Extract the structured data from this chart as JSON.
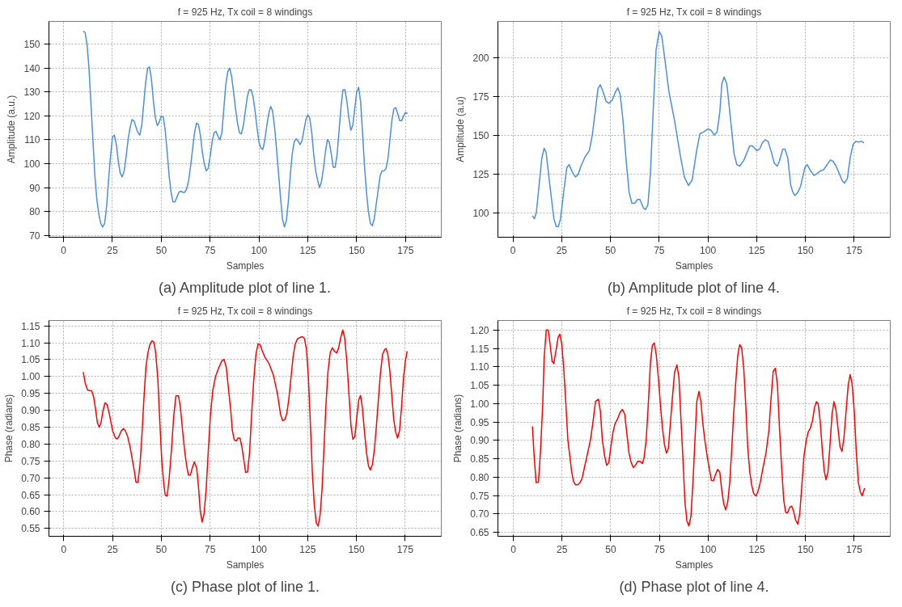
{
  "chart_data": [
    {
      "type": "line",
      "title": "f = 925 Hz, Tx coil = 8 windings",
      "xlabel": "Samples",
      "ylabel": "Amplitude (a.u.)",
      "annotations": [
        "(a) Amplitude plot of line 1."
      ],
      "xlim": [
        -7.5,
        193.3
      ],
      "ylim": [
        69.2,
        159.6
      ],
      "xticks": [
        0,
        25,
        50,
        75,
        100,
        125,
        150,
        175
      ],
      "yticks": [
        70,
        80,
        90,
        100,
        110,
        120,
        130,
        140,
        150
      ],
      "grid": true,
      "x": [
        10,
        11,
        12,
        13,
        14,
        16,
        17,
        18,
        19,
        20,
        21,
        22,
        23,
        24,
        25,
        26,
        27,
        28,
        29,
        30,
        31,
        32,
        33,
        34,
        35,
        36,
        37,
        38,
        39,
        40,
        41,
        42,
        43,
        44,
        45,
        46,
        47,
        48,
        49,
        50,
        51,
        52,
        53,
        54,
        55,
        56,
        57,
        58,
        59,
        60,
        61,
        62,
        63,
        64,
        65,
        66,
        67,
        68,
        69,
        70,
        71,
        72,
        73,
        74,
        75,
        76,
        77,
        78,
        79,
        80,
        81,
        82,
        83,
        84,
        85,
        86,
        87,
        88,
        89,
        90,
        91,
        92,
        93,
        94,
        95,
        96,
        97,
        98,
        99,
        100,
        101,
        102,
        103,
        104,
        105,
        106,
        107,
        108,
        109,
        110,
        111,
        112,
        113,
        114,
        115,
        116,
        117,
        118,
        119,
        120,
        121,
        122,
        123,
        124,
        125,
        126,
        127,
        128,
        129,
        130,
        131,
        132,
        133,
        134,
        135,
        136,
        137,
        138,
        139,
        140,
        141,
        142,
        143,
        144,
        145,
        146,
        147,
        148,
        149,
        150,
        151,
        152,
        153,
        154,
        155,
        156,
        157,
        158,
        159,
        160,
        161,
        162,
        163,
        164,
        165,
        166,
        167,
        168,
        169,
        170,
        171,
        172,
        173,
        174,
        175,
        176
      ],
      "series": [
        {
          "color": "#4a8fe0",
          "values": [
            155.5,
            155,
            150,
            140,
            125,
            95,
            85,
            79,
            75,
            73.5,
            75,
            82,
            93,
            103,
            111,
            112,
            108,
            101,
            96,
            94.5,
            97,
            103,
            110,
            115,
            118.5,
            118,
            115.5,
            113,
            112,
            116,
            125,
            134,
            140,
            140.5,
            135,
            126,
            119,
            116,
            117.5,
            120,
            119.5,
            114,
            105,
            95,
            88,
            84,
            84,
            86,
            88,
            88.5,
            88,
            88,
            89.5,
            93,
            99,
            106,
            113,
            117,
            116.5,
            112,
            105,
            100,
            97,
            98,
            103,
            109,
            113,
            113.5,
            111.5,
            110,
            113,
            123,
            133,
            138.5,
            140,
            136.5,
            130,
            123,
            117,
            113,
            112.5,
            116,
            122,
            128,
            131,
            131,
            128,
            122,
            115,
            109,
            106.5,
            106,
            110,
            116,
            121,
            124,
            122,
            115,
            106,
            96,
            86,
            77,
            73.5,
            76,
            84,
            95,
            104,
            109,
            110.5,
            109.5,
            108,
            109.5,
            114,
            118.5,
            120.5,
            119,
            113,
            104,
            97,
            93,
            90,
            92.5,
            98,
            105,
            110,
            109,
            104,
            98.5,
            98.5,
            104,
            114,
            124,
            131,
            131,
            126,
            119,
            114,
            116,
            123,
            130,
            132,
            126,
            113,
            99,
            88,
            80,
            75,
            74,
            77,
            83,
            89,
            95,
            97,
            97,
            98,
            102,
            110,
            118,
            123,
            123.5,
            121,
            118,
            118,
            120,
            121.5,
            121
          ]
        }
      ]
    },
    {
      "type": "line",
      "title": "f = 925 Hz, Tx coil = 8 windings",
      "xlabel": "Samples",
      "ylabel": "Amplitude (a.u)",
      "annotations": [
        "(b) Amplitude plot of line 4."
      ],
      "xlim": [
        -7.7,
        193.5
      ],
      "ylim": [
        84.1,
        223.4
      ],
      "xticks": [
        0,
        25,
        50,
        75,
        100,
        125,
        150,
        175
      ],
      "yticks": [
        100,
        125,
        150,
        175,
        200
      ],
      "grid": true,
      "x": [
        10,
        11,
        12,
        14.8,
        16,
        17,
        18.9,
        21,
        22.2,
        23.3,
        24.4,
        26.2,
        27.6,
        28.8,
        30.5,
        32,
        33.4,
        34.9,
        37,
        39.2,
        40.7,
        42.2,
        43.6,
        44.8,
        46.2,
        47.7,
        49.1,
        50.9,
        52.6,
        53.8,
        55,
        56.4,
        58.1,
        59.6,
        61,
        62.5,
        63.9,
        65.1,
        66.9,
        68,
        69.2,
        70.5,
        71.9,
        73.4,
        75,
        76.3,
        77.8,
        80,
        82.8,
        85.8,
        87.9,
        90,
        91.9,
        94.2,
        95.9,
        97.7,
        100,
        101.7,
        103.2,
        104.7,
        106.1,
        107.1,
        108.3,
        109.7,
        111.2,
        113.4,
        114.8,
        116.3,
        118.5,
        121.4,
        122.8,
        125,
        126.5,
        127.9,
        129.4,
        130.8,
        132.3,
        134,
        135.5,
        136.6,
        138.4,
        139.5,
        141,
        142.4,
        143.6,
        144.6,
        146.1,
        147.5,
        149.7,
        150.9,
        152.6,
        154.4,
        155.8,
        157.7,
        159.2,
        160.6,
        162.8,
        164.2,
        165.7,
        167.4,
        168.9,
        170,
        171.5,
        172.9,
        174.4,
        175.9,
        177.3,
        178.8,
        180
      ],
      "series": [
        {
          "color": "#4a8fe0",
          "values": [
            98,
            96,
            100,
            135,
            141.5,
            139,
            118,
            96,
            91,
            91,
            96,
            115,
            129,
            131,
            126,
            123,
            124.5,
            130,
            136,
            140,
            150,
            165,
            180,
            182.5,
            178,
            172,
            170.5,
            172.5,
            178,
            180.5,
            176,
            160,
            133,
            113,
            106,
            106,
            108.5,
            108.5,
            103,
            102,
            105,
            125,
            165,
            205,
            217,
            214,
            200,
            178,
            160,
            137,
            123,
            117.5,
            121,
            140,
            151,
            152,
            154,
            153,
            150,
            152,
            165,
            183,
            187.5,
            183,
            165,
            138,
            131,
            130,
            134,
            143,
            143,
            140,
            141,
            145,
            147,
            146,
            140,
            132,
            130,
            133,
            141,
            141,
            135,
            118,
            113,
            111,
            113,
            117,
            129,
            131,
            127,
            124,
            125,
            127,
            127.5,
            130,
            134,
            133,
            130,
            125,
            120.5,
            119,
            122,
            135,
            144,
            146,
            145.5,
            146,
            145
          ]
        }
      ]
    },
    {
      "type": "line",
      "title": "f = 925 Hz, Tx coil = 8 windings",
      "xlabel": "Samples",
      "ylabel": "Phase (radians)",
      "annotations": [
        "(c) Phase plot of line 1."
      ],
      "xlim": [
        -7.6,
        193.5
      ],
      "ylim": [
        0.527,
        1.166
      ],
      "xticks": [
        0,
        25,
        50,
        75,
        100,
        125,
        150,
        175
      ],
      "yticks": [
        0.55,
        {
          "value": 0.6,
          "label": "0.60"
        },
        0.65,
        {
          "value": 0.7,
          "label": "0.70"
        },
        0.75,
        {
          "value": 0.8,
          "label": "0.80"
        },
        0.85,
        {
          "value": 0.9,
          "label": "0.90"
        },
        0.95,
        {
          "value": 1.0,
          "label": "1.00"
        },
        1.05,
        {
          "value": 1.1,
          "label": "1.10"
        },
        1.15
      ],
      "grid": true,
      "x": [
        10,
        11,
        12.2,
        13.6,
        14.3,
        15.3,
        16.2,
        17.2,
        18.2,
        19.1,
        20.1,
        21.1,
        22.2,
        23.4,
        25.1,
        26.5,
        27.4,
        28.2,
        29.4,
        30.5,
        31.5,
        32.7,
        33.9,
        35,
        36.3,
        37,
        38,
        39.1,
        40.1,
        41.1,
        42.1,
        43.1,
        44.1,
        45.2,
        46.2,
        47.1,
        48.2,
        49.2,
        50.3,
        51.3,
        52,
        53,
        54,
        55.2,
        56.3,
        57.5,
        58.8,
        59.8,
        60.9,
        62.1,
        63,
        63.9,
        64.9,
        65.9,
        66.9,
        68.1,
        69,
        70,
        70.9,
        71.9,
        73,
        74.1,
        75.2,
        76.4,
        77.8,
        79.5,
        81,
        82.1,
        83.3,
        84.4,
        85.6,
        86.4,
        87.4,
        88.4,
        89.3,
        90.3,
        91.3,
        92.4,
        93.2,
        94.2,
        95.2,
        96.2,
        97.3,
        98.5,
        99.6,
        100.6,
        101.8,
        103.2,
        105.3,
        107.5,
        109.6,
        111.1,
        112.2,
        113.4,
        114.4,
        115.4,
        116.5,
        117.5,
        118.5,
        119.7,
        121.1,
        122.3,
        123.4,
        124.4,
        125.4,
        126.4,
        127.4,
        128.4,
        129.4,
        130.4,
        131.4,
        132.4,
        133.4,
        134.4,
        135.4,
        136.6,
        137.7,
        138.7,
        139.9,
        140.9,
        141.9,
        143,
        144,
        145,
        146.2,
        147.2,
        148.2,
        149.2,
        150.2,
        151.2,
        152.1,
        153,
        154,
        155.2,
        156.2,
        157.2,
        158.2,
        159.2,
        160.2,
        161.2,
        162.2,
        163.4,
        164.5,
        165.2,
        166.1,
        167.1,
        168.1,
        169.1,
        170.1,
        171.1,
        172.1,
        173.1,
        174.1,
        175,
        176
      ],
      "series": [
        {
          "color": "#ff0000",
          "values": [
            1.013,
            0.98,
            0.96,
            0.958,
            0.958,
            0.94,
            0.907,
            0.864,
            0.85,
            0.864,
            0.898,
            0.922,
            0.917,
            0.888,
            0.838,
            0.818,
            0.815,
            0.822,
            0.838,
            0.846,
            0.84,
            0.823,
            0.794,
            0.759,
            0.716,
            0.687,
            0.687,
            0.74,
            0.83,
            0.936,
            1.027,
            1.07,
            1.094,
            1.106,
            1.102,
            1.07,
            0.994,
            0.869,
            0.745,
            0.68,
            0.649,
            0.646,
            0.697,
            0.783,
            0.879,
            0.943,
            0.943,
            0.907,
            0.84,
            0.773,
            0.735,
            0.708,
            0.708,
            0.73,
            0.747,
            0.73,
            0.677,
            0.6,
            0.569,
            0.593,
            0.668,
            0.783,
            0.888,
            0.96,
            1.0,
            1.027,
            1.046,
            1.051,
            1.027,
            0.965,
            0.898,
            0.84,
            0.812,
            0.809,
            0.818,
            0.818,
            0.792,
            0.749,
            0.716,
            0.718,
            0.773,
            0.879,
            0.984,
            1.066,
            1.097,
            1.094,
            1.075,
            1.056,
            1.037,
            1.003,
            0.946,
            0.888,
            0.869,
            0.873,
            0.893,
            0.936,
            0.999,
            1.056,
            1.094,
            1.111,
            1.116,
            1.118,
            1.112,
            1.08,
            0.994,
            0.86,
            0.716,
            0.62,
            0.567,
            0.557,
            0.591,
            0.668,
            0.792,
            0.917,
            1.013,
            1.072,
            1.085,
            1.075,
            1.07,
            1.085,
            1.114,
            1.138,
            1.114,
            1.051,
            0.946,
            0.855,
            0.814,
            0.823,
            0.879,
            0.931,
            0.944,
            0.911,
            0.845,
            0.773,
            0.735,
            0.723,
            0.74,
            0.783,
            0.85,
            0.927,
            1.003,
            1.066,
            1.08,
            1.083,
            1.066,
            1.018,
            0.946,
            0.874,
            0.836,
            0.818,
            0.84,
            0.907,
            0.994,
            1.042,
            1.075
          ]
        }
      ]
    },
    {
      "type": "line",
      "title": "f = 925 Hz, Tx coil = 8 windings",
      "xlabel": "Samples",
      "ylabel": "Phase (radians)",
      "annotations": [
        "(d) Phase plot of line 4."
      ],
      "xlim": [
        -7.9,
        193.5
      ],
      "ylim": [
        0.639,
        1.226
      ],
      "xticks": [
        0,
        25,
        50,
        75,
        100,
        125,
        150,
        175
      ],
      "yticks": [
        0.65,
        {
          "value": 0.7,
          "label": "0.70"
        },
        0.75,
        {
          "value": 0.8,
          "label": "0.80"
        },
        0.85,
        {
          "value": 0.9,
          "label": "0.90"
        },
        0.95,
        {
          "value": 1.0,
          "label": "1.00"
        },
        1.05,
        {
          "value": 1.1,
          "label": "1.10"
        },
        1.15,
        {
          "value": 1.2,
          "label": "1.20"
        }
      ],
      "grid": true,
      "x": [
        9.8,
        10.7,
        11.7,
        12.9,
        13.9,
        15.1,
        15.8,
        16.9,
        17.9,
        18.8,
        19.9,
        20.8,
        22,
        23,
        23.9,
        24.9,
        25.9,
        26.9,
        28,
        29,
        30,
        30.9,
        31.9,
        33.1,
        34.1,
        35.2,
        36.3,
        37.8,
        39.6,
        41,
        42.2,
        43.7,
        44.7,
        45.7,
        46.9,
        47.9,
        49,
        50.1,
        51.2,
        52.2,
        53.5,
        54.8,
        56,
        57.2,
        58.3,
        59.4,
        60.4,
        61.6,
        62.7,
        63.9,
        65.1,
        66.2,
        67.1,
        68.2,
        69.2,
        70.4,
        71.4,
        72.4,
        73.4,
        74.5,
        75.5,
        76.5,
        77.6,
        78.6,
        79.6,
        80.6,
        81.8,
        82.8,
        84,
        85,
        86,
        87.1,
        88.1,
        89.1,
        90.1,
        91.2,
        92.3,
        93.4,
        94.2,
        95.3,
        96.3,
        97.3,
        98.3,
        99.5,
        100.5,
        101.7,
        102.7,
        103.8,
        104.9,
        106,
        107,
        108,
        109,
        110.1,
        111.1,
        112.1,
        113.1,
        114.2,
        115.2,
        116.2,
        117.2,
        118.3,
        119.3,
        120.3,
        121.4,
        122.4,
        123.4,
        124.6,
        125.6,
        126.8,
        128.2,
        129.7,
        131.2,
        132.2,
        133.4,
        134.5,
        135.6,
        136.6,
        137.8,
        138.8,
        139.8,
        140.8,
        141.9,
        142.9,
        143.9,
        144.9,
        146,
        147,
        148,
        149.2,
        150.4,
        151.4,
        152.4,
        153.6,
        154.6,
        155.6,
        156.5,
        157.5,
        158.6,
        159.6,
        160.5,
        161.5,
        162.5,
        163.6,
        164.6,
        165.6,
        166.6,
        167.7,
        168.7,
        169.7,
        170.7,
        171.9,
        172.9,
        173.9,
        175,
        176,
        177.1,
        178.1,
        179.1,
        180.3
      ],
      "series": [
        {
          "color": "#ff0000",
          "values": [
            0.938,
            0.857,
            0.785,
            0.786,
            0.865,
            0.998,
            1.121,
            1.2,
            1.2,
            1.165,
            1.115,
            1.109,
            1.147,
            1.18,
            1.189,
            1.16,
            1.094,
            1.006,
            0.901,
            0.857,
            0.813,
            0.788,
            0.779,
            0.779,
            0.784,
            0.795,
            0.821,
            0.857,
            0.901,
            0.954,
            1.006,
            1.012,
            0.979,
            0.901,
            0.857,
            0.832,
            0.839,
            0.883,
            0.923,
            0.945,
            0.958,
            0.976,
            0.984,
            0.971,
            0.918,
            0.865,
            0.841,
            0.826,
            0.832,
            0.843,
            0.843,
            0.837,
            0.852,
            0.901,
            0.989,
            1.112,
            1.159,
            1.165,
            1.131,
            1.068,
            0.998,
            0.936,
            0.888,
            0.865,
            0.878,
            0.945,
            1.024,
            1.086,
            1.105,
            1.072,
            0.962,
            0.848,
            0.733,
            0.681,
            0.667,
            0.694,
            0.795,
            0.918,
            1.006,
            1.033,
            1.006,
            0.945,
            0.901,
            0.857,
            0.826,
            0.791,
            0.79,
            0.807,
            0.821,
            0.813,
            0.764,
            0.728,
            0.711,
            0.733,
            0.786,
            0.874,
            0.971,
            1.059,
            1.13,
            1.16,
            1.152,
            1.094,
            0.998,
            0.883,
            0.813,
            0.777,
            0.755,
            0.749,
            0.761,
            0.786,
            0.826,
            0.865,
            0.927,
            1.006,
            1.087,
            1.096,
            1.05,
            0.936,
            0.821,
            0.738,
            0.704,
            0.703,
            0.718,
            0.721,
            0.707,
            0.683,
            0.672,
            0.699,
            0.769,
            0.857,
            0.901,
            0.923,
            0.932,
            0.954,
            0.989,
            1.005,
            0.999,
            0.954,
            0.874,
            0.817,
            0.793,
            0.813,
            0.883,
            0.971,
            1.005,
            0.984,
            0.936,
            0.883,
            0.87,
            0.905,
            0.971,
            1.05,
            1.079,
            1.054,
            0.98,
            0.874,
            0.786,
            0.76,
            0.749,
            0.77
          ]
        }
      ]
    }
  ]
}
